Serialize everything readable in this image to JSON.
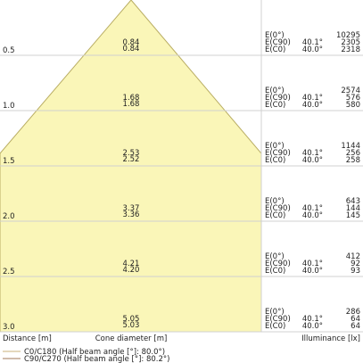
{
  "rows": [
    {
      "distance": "0.5",
      "diameters": [
        "0.84",
        "0.84"
      ],
      "e0_label": "E(0°)",
      "e0": "10295",
      "ec90_label": "E(C90)",
      "ec90_angle": "40.1°",
      "ec90": "2305",
      "ec0_label": "E(C0)",
      "ec0_angle": "40.0°",
      "ec0": "2318"
    },
    {
      "distance": "1.0",
      "diameters": [
        "1.68",
        "1.68"
      ],
      "e0_label": "E(0°)",
      "e0": "2574",
      "ec90_label": "E(C90)",
      "ec90_angle": "40.1°",
      "ec90": "576",
      "ec0_label": "E(C0)",
      "ec0_angle": "40.0°",
      "ec0": "580"
    },
    {
      "distance": "1.5",
      "diameters": [
        "2.53",
        "2.52"
      ],
      "e0_label": "E(0°)",
      "e0": "1144",
      "ec90_label": "E(C90)",
      "ec90_angle": "40.1°",
      "ec90": "256",
      "ec0_label": "E(C0)",
      "ec0_angle": "40.0°",
      "ec0": "258"
    },
    {
      "distance": "2.0",
      "diameters": [
        "3.37",
        "3.36"
      ],
      "e0_label": "E(0°)",
      "e0": "643",
      "ec90_label": "E(C90)",
      "ec90_angle": "40.1°",
      "ec90": "144",
      "ec0_label": "E(C0)",
      "ec0_angle": "40.0°",
      "ec0": "145"
    },
    {
      "distance": "2.5",
      "diameters": [
        "4.21",
        "4.20"
      ],
      "e0_label": "E(0°)",
      "e0": "412",
      "ec90_label": "E(C90)",
      "ec90_angle": "40.1°",
      "ec90": "92",
      "ec0_label": "E(C0)",
      "ec0_angle": "40.0°",
      "ec0": "93"
    },
    {
      "distance": "3.0",
      "diameters": [
        "5.05",
        "5.03"
      ],
      "e0_label": "E(0°)",
      "e0": "286",
      "ec90_label": "E(C90)",
      "ec90_angle": "40.1°",
      "ec90": "64",
      "ec0_label": "E(C0)",
      "ec0_angle": "40.0°",
      "ec0": "64"
    }
  ],
  "footer": {
    "distance": "Distance [m]",
    "diameter": "Cone diameter [m]",
    "illuminance": "Illuminance [lx]"
  },
  "legend": [
    {
      "label": "C0/C180 (Half beam angle [°]: 80.0°)",
      "color": "#c9b27a"
    },
    {
      "label": "C90/C270 (Half beam angle [°]: 80.2°)",
      "color": "#a07a5a"
    }
  ]
}
